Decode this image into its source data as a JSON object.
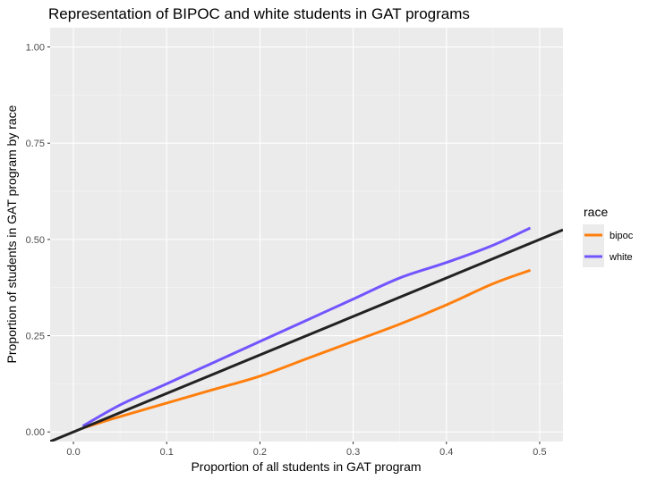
{
  "chart_data": {
    "type": "line",
    "title": "Representation of BIPOC and white students in GAT programs",
    "xlabel": "Proportion of all students in GAT program",
    "ylabel": "Proportion of students in GAT program by race",
    "xlim": [
      -0.025,
      0.525
    ],
    "ylim": [
      -0.025,
      1.05
    ],
    "x_ticks": [
      0.0,
      0.1,
      0.2,
      0.3,
      0.4,
      0.5
    ],
    "x_tick_labels": [
      "0.0",
      "0.1",
      "0.2",
      "0.3",
      "0.4",
      "0.5"
    ],
    "y_ticks": [
      0.0,
      0.25,
      0.5,
      0.75,
      1.0
    ],
    "y_tick_labels": [
      "0.00",
      "0.25",
      "0.50",
      "0.75",
      "1.00"
    ],
    "grid": true,
    "background": "#ebebeb",
    "legend": {
      "title": "race",
      "position": "right"
    },
    "series": [
      {
        "name": "bipoc",
        "color": "#ff7f0e",
        "x": [
          0.01,
          0.05,
          0.1,
          0.15,
          0.2,
          0.25,
          0.3,
          0.35,
          0.4,
          0.45,
          0.49
        ],
        "y": [
          0.01,
          0.04,
          0.075,
          0.11,
          0.145,
          0.19,
          0.235,
          0.28,
          0.33,
          0.385,
          0.42
        ]
      },
      {
        "name": "white",
        "color": "#7355ff",
        "x": [
          0.01,
          0.05,
          0.1,
          0.15,
          0.2,
          0.25,
          0.3,
          0.35,
          0.4,
          0.45,
          0.49
        ],
        "y": [
          0.015,
          0.07,
          0.125,
          0.18,
          0.235,
          0.29,
          0.345,
          0.4,
          0.44,
          0.485,
          0.53
        ]
      }
    ],
    "reference_line": {
      "slope": 1,
      "intercept": 0,
      "color": "#222222"
    }
  }
}
